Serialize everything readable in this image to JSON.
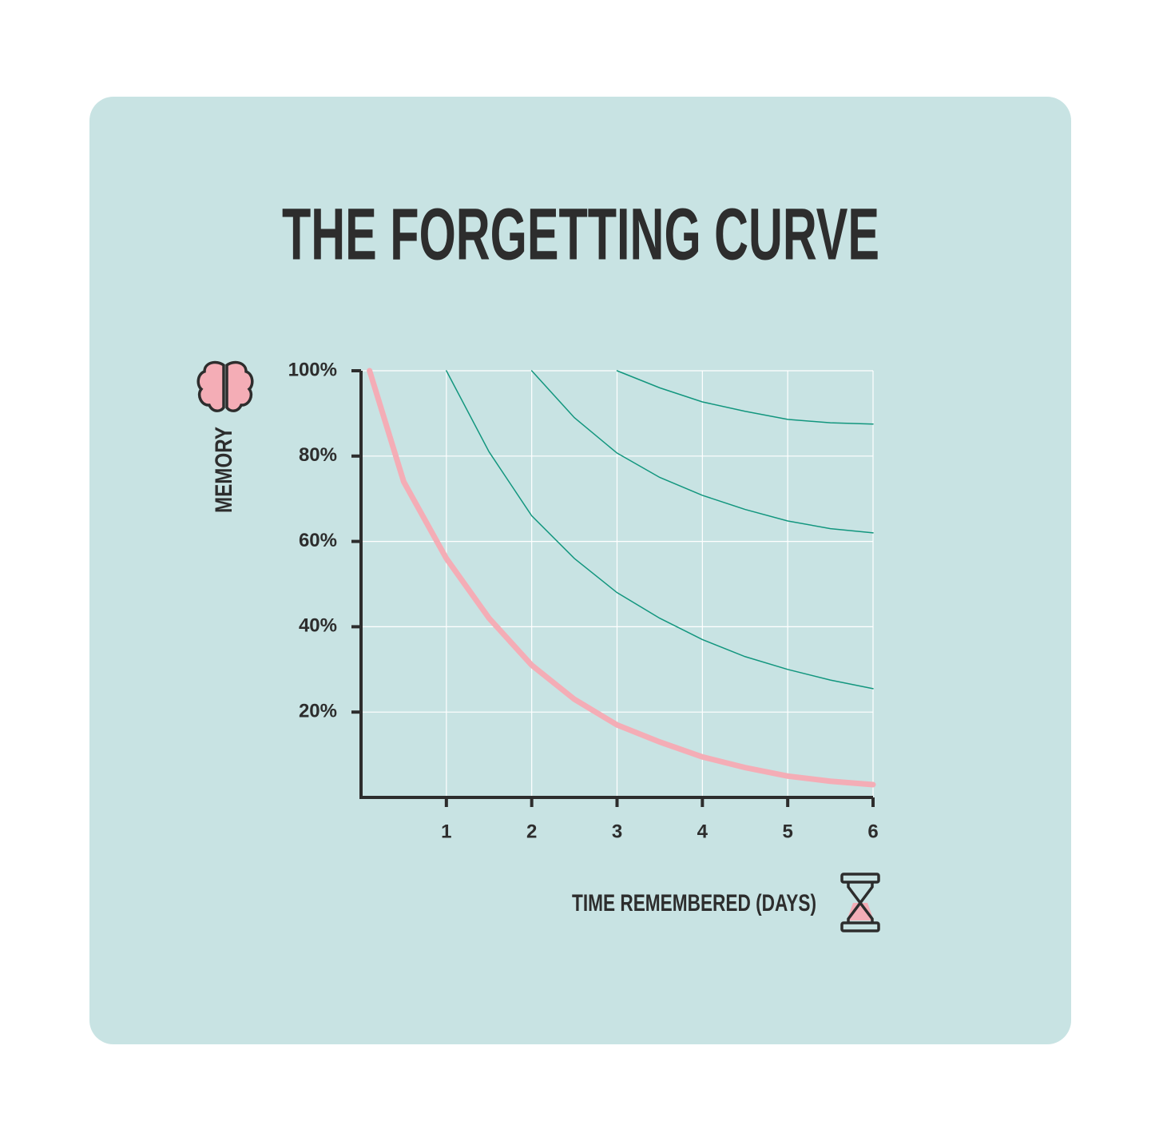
{
  "chart_data": {
    "type": "line",
    "title": "THE FORGETTING CURVE",
    "y_label": "MEMORY",
    "x_label": "TIME REMEMBERED (DAYS)",
    "xlim": [
      0,
      6
    ],
    "ylim": [
      0,
      100
    ],
    "xticks": [
      1,
      2,
      3,
      4,
      5,
      6
    ],
    "yticks": [
      {
        "value": 20,
        "label": "20%"
      },
      {
        "value": 40,
        "label": "40%"
      },
      {
        "value": 60,
        "label": "60%"
      },
      {
        "value": 80,
        "label": "80%"
      },
      {
        "value": 100,
        "label": "100%"
      }
    ],
    "grid": true,
    "series": [
      {
        "color": "#f4adb6",
        "width": 7,
        "x": [
          0.1,
          0.5,
          1,
          1.5,
          2,
          2.5,
          3,
          3.5,
          4,
          4.5,
          5,
          5.5,
          6
        ],
        "values": [
          100,
          74,
          56,
          42,
          31,
          23,
          17,
          13,
          9.5,
          7,
          5,
          3.8,
          3
        ]
      },
      {
        "color": "#12967e",
        "width": 1.5,
        "x": [
          1,
          1.5,
          2,
          2.5,
          3,
          3.5,
          4,
          4.5,
          5,
          5.5,
          6
        ],
        "values": [
          100,
          81,
          66,
          56,
          48,
          42,
          37,
          33,
          30,
          27.5,
          25.5
        ]
      },
      {
        "color": "#12967e",
        "width": 1.5,
        "x": [
          2,
          2.5,
          3,
          3.5,
          4,
          4.5,
          5,
          5.5,
          6
        ],
        "values": [
          100,
          89,
          80.7,
          75,
          70.8,
          67.5,
          64.8,
          63,
          62
        ]
      },
      {
        "color": "#12967e",
        "width": 1.5,
        "x": [
          3,
          3.5,
          4,
          4.5,
          5,
          5.5,
          6
        ],
        "values": [
          100,
          96,
          92.7,
          90.5,
          88.6,
          87.8,
          87.5
        ]
      }
    ]
  }
}
